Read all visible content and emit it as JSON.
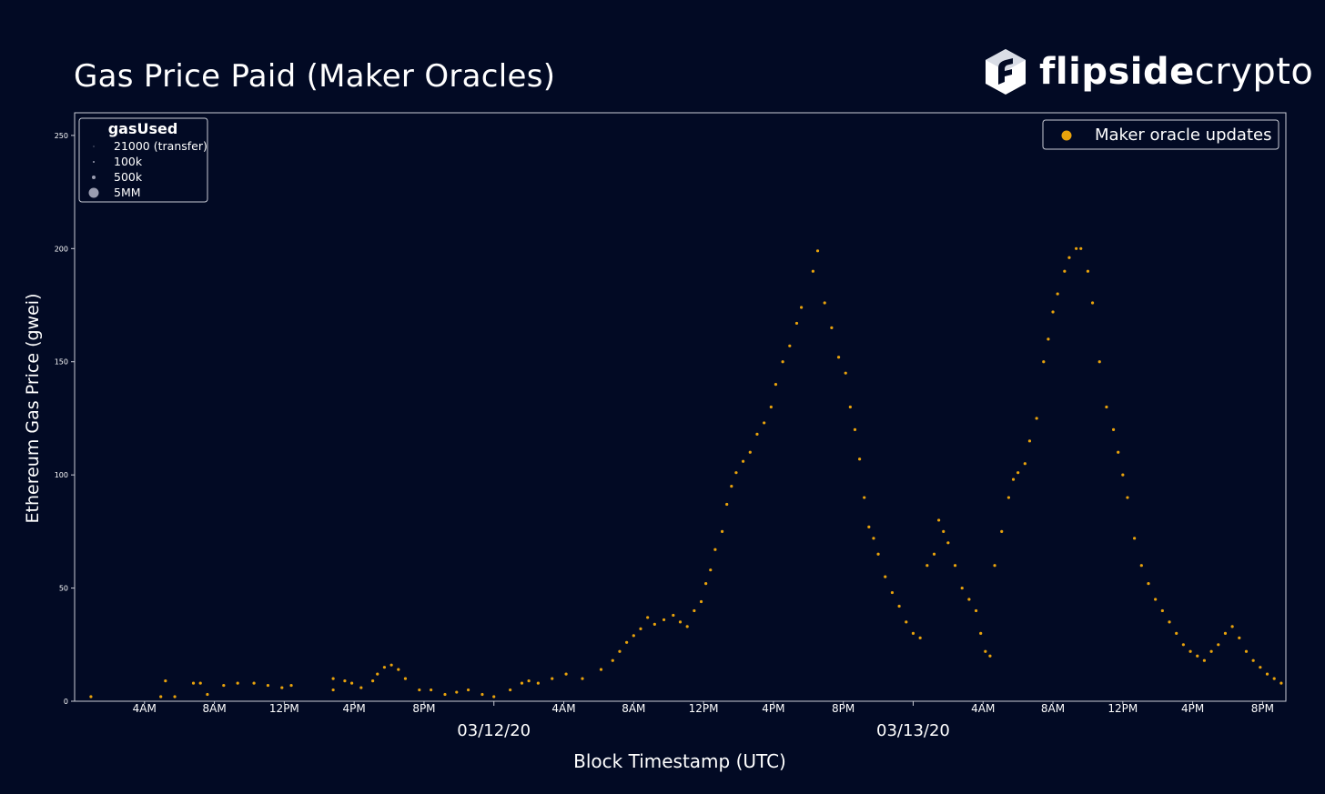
{
  "header": {
    "title": "Gas Price Paid (Maker Oracles)",
    "brand_bold": "flipside",
    "brand_light": "crypto",
    "logo_icon": "flipside-logo-icon"
  },
  "colors": {
    "background": "#020a24",
    "point": "#e8a20c",
    "text": "#ffffff"
  },
  "chart_data": {
    "type": "scatter",
    "xlabel": "Block Timestamp (UTC)",
    "ylabel": "Ethereum Gas Price (gwei)",
    "ylim": [
      0,
      260
    ],
    "xlim_hours": [
      0,
      52
    ],
    "yticks": [
      0,
      50,
      100,
      150,
      200,
      250
    ],
    "xticks": [
      {
        "h": 3,
        "label": "4AM"
      },
      {
        "h": 6,
        "label": "8AM"
      },
      {
        "h": 9,
        "label": "12PM"
      },
      {
        "h": 12,
        "label": "4PM"
      },
      {
        "h": 15,
        "label": "8PM"
      },
      {
        "h": 21,
        "label": "4AM"
      },
      {
        "h": 24,
        "label": "8AM"
      },
      {
        "h": 27,
        "label": "12PM"
      },
      {
        "h": 30,
        "label": "4PM"
      },
      {
        "h": 33,
        "label": "8PM"
      },
      {
        "h": 39,
        "label": "4AM"
      },
      {
        "h": 42,
        "label": "8AM"
      },
      {
        "h": 45,
        "label": "12PM"
      },
      {
        "h": 48,
        "label": "4PM"
      },
      {
        "h": 51,
        "label": "8PM"
      }
    ],
    "date_labels": [
      {
        "h": 18,
        "label": "03/12/20"
      },
      {
        "h": 36,
        "label": "03/13/20"
      }
    ],
    "grid": false,
    "size_legend": {
      "title": "gasUsed",
      "placement": "top-left",
      "entries": [
        "21000 (transfer)",
        "100k",
        "500k",
        "5MM"
      ]
    },
    "series": [
      {
        "name": "Maker oracle updates",
        "points": [
          [
            0.7,
            2
          ],
          [
            3.7,
            2
          ],
          [
            3.9,
            9
          ],
          [
            4.3,
            2
          ],
          [
            5.1,
            8
          ],
          [
            5.4,
            8
          ],
          [
            5.7,
            3
          ],
          [
            6.4,
            7
          ],
          [
            7.0,
            8
          ],
          [
            7.7,
            8
          ],
          [
            8.3,
            7
          ],
          [
            8.9,
            6
          ],
          [
            9.3,
            7
          ],
          [
            11.1,
            5
          ],
          [
            11.1,
            10
          ],
          [
            11.6,
            9
          ],
          [
            11.9,
            8
          ],
          [
            12.3,
            6
          ],
          [
            12.8,
            9
          ],
          [
            13.0,
            12
          ],
          [
            13.3,
            15
          ],
          [
            13.6,
            16
          ],
          [
            13.9,
            14
          ],
          [
            14.2,
            10
          ],
          [
            14.8,
            5
          ],
          [
            15.3,
            5
          ],
          [
            15.9,
            3
          ],
          [
            16.4,
            4
          ],
          [
            16.9,
            5
          ],
          [
            17.5,
            3
          ],
          [
            18.0,
            2
          ],
          [
            18.7,
            5
          ],
          [
            19.2,
            8
          ],
          [
            19.5,
            9
          ],
          [
            19.9,
            8
          ],
          [
            20.5,
            10
          ],
          [
            21.1,
            12
          ],
          [
            21.8,
            10
          ],
          [
            22.6,
            14
          ],
          [
            23.1,
            18
          ],
          [
            23.4,
            22
          ],
          [
            23.7,
            26
          ],
          [
            24.0,
            29
          ],
          [
            24.3,
            32
          ],
          [
            24.6,
            37
          ],
          [
            24.9,
            34
          ],
          [
            25.3,
            36
          ],
          [
            25.7,
            38
          ],
          [
            26.0,
            35
          ],
          [
            26.3,
            33
          ],
          [
            26.6,
            40
          ],
          [
            26.9,
            44
          ],
          [
            27.1,
            52
          ],
          [
            27.3,
            58
          ],
          [
            27.5,
            67
          ],
          [
            27.8,
            75
          ],
          [
            28.0,
            87
          ],
          [
            28.2,
            95
          ],
          [
            28.4,
            101
          ],
          [
            28.7,
            106
          ],
          [
            29.0,
            110
          ],
          [
            29.3,
            118
          ],
          [
            29.6,
            123
          ],
          [
            29.9,
            130
          ],
          [
            30.1,
            140
          ],
          [
            30.4,
            150
          ],
          [
            30.7,
            157
          ],
          [
            31.0,
            167
          ],
          [
            31.2,
            174
          ],
          [
            31.7,
            190
          ],
          [
            31.9,
            199
          ],
          [
            32.2,
            176
          ],
          [
            32.5,
            165
          ],
          [
            32.8,
            152
          ],
          [
            33.1,
            145
          ],
          [
            33.3,
            130
          ],
          [
            33.5,
            120
          ],
          [
            33.7,
            107
          ],
          [
            33.9,
            90
          ],
          [
            34.1,
            77
          ],
          [
            34.3,
            72
          ],
          [
            34.5,
            65
          ],
          [
            34.8,
            55
          ],
          [
            35.1,
            48
          ],
          [
            35.4,
            42
          ],
          [
            35.7,
            35
          ],
          [
            36.0,
            30
          ],
          [
            36.3,
            28
          ],
          [
            36.6,
            60
          ],
          [
            36.9,
            65
          ],
          [
            37.1,
            80
          ],
          [
            37.3,
            75
          ],
          [
            37.5,
            70
          ],
          [
            37.8,
            60
          ],
          [
            38.1,
            50
          ],
          [
            38.4,
            45
          ],
          [
            38.7,
            40
          ],
          [
            38.9,
            30
          ],
          [
            39.1,
            22
          ],
          [
            39.3,
            20
          ],
          [
            39.5,
            60
          ],
          [
            39.8,
            75
          ],
          [
            40.1,
            90
          ],
          [
            40.3,
            98
          ],
          [
            40.5,
            101
          ],
          [
            40.8,
            105
          ],
          [
            41.0,
            115
          ],
          [
            41.3,
            125
          ],
          [
            41.6,
            150
          ],
          [
            41.8,
            160
          ],
          [
            42.0,
            172
          ],
          [
            42.2,
            180
          ],
          [
            42.5,
            190
          ],
          [
            42.7,
            196
          ],
          [
            43.0,
            200
          ],
          [
            43.2,
            200
          ],
          [
            43.5,
            190
          ],
          [
            43.7,
            176
          ],
          [
            44.0,
            150
          ],
          [
            44.3,
            130
          ],
          [
            44.6,
            120
          ],
          [
            44.8,
            110
          ],
          [
            45.0,
            100
          ],
          [
            45.2,
            90
          ],
          [
            45.5,
            72
          ],
          [
            45.8,
            60
          ],
          [
            46.1,
            52
          ],
          [
            46.4,
            45
          ],
          [
            46.7,
            40
          ],
          [
            47.0,
            35
          ],
          [
            47.3,
            30
          ],
          [
            47.6,
            25
          ],
          [
            47.9,
            22
          ],
          [
            48.2,
            20
          ],
          [
            48.5,
            18
          ],
          [
            48.8,
            22
          ],
          [
            49.1,
            25
          ],
          [
            49.4,
            30
          ],
          [
            49.7,
            33
          ],
          [
            50.0,
            28
          ],
          [
            50.3,
            22
          ],
          [
            50.6,
            18
          ],
          [
            50.9,
            15
          ],
          [
            51.2,
            12
          ],
          [
            51.5,
            10
          ],
          [
            51.8,
            8
          ]
        ]
      }
    ]
  }
}
